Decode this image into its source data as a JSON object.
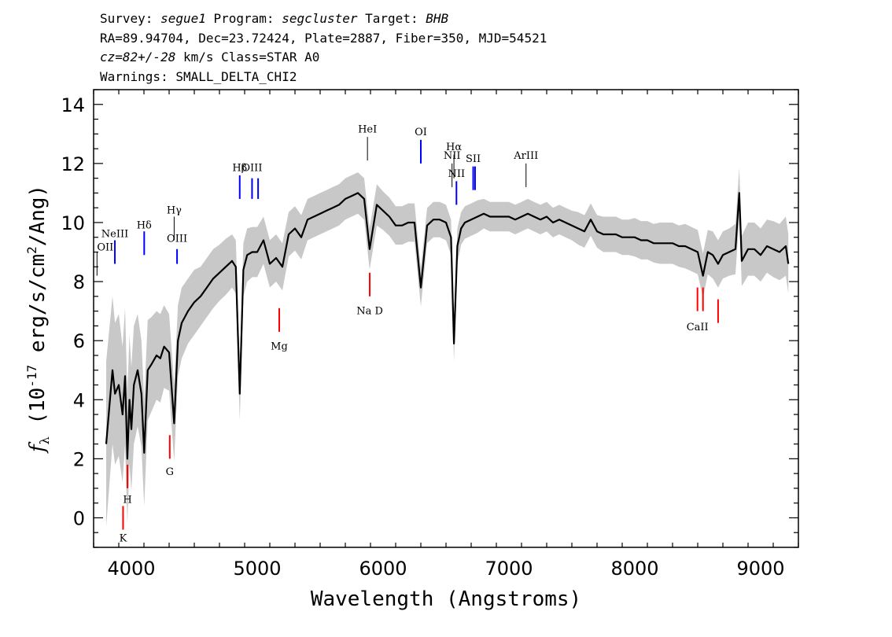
{
  "header": {
    "line1": {
      "survey_label": "Survey: ",
      "survey": "segue1",
      "program_label": " Program: ",
      "program": "segcluster",
      "target_label": " Target: ",
      "target": "BHB"
    },
    "line2": "RA=89.94704, Dec=23.72424, Plate=2887, Fiber=350, MJD=54521",
    "line3": {
      "cz": "cz=82+/-28",
      "rest": " km/s Class=STAR A0"
    },
    "line4": "Warnings: SMALL_DELTA_CHI2"
  },
  "chart_data": {
    "type": "line",
    "xlabel": "Wavelength (Angstroms)",
    "ylabel_prefix": "(10",
    "ylabel_exp": "-17",
    "ylabel_suffix": " erg/s/cm",
    "ylabel_exp2": "2",
    "ylabel_end": "/Ang)",
    "xlim": [
      3700,
      9300
    ],
    "ylim": [
      -1,
      14.5
    ],
    "xticks": [
      "4000",
      "5000",
      "6000",
      "7000",
      "8000",
      "9000"
    ],
    "yticks": [
      "0",
      "2",
      "4",
      "6",
      "8",
      "10",
      "12",
      "14"
    ],
    "colors": {
      "flux": "#000000",
      "error_band": "#c8c8c8",
      "emission": "#0000ff",
      "absorption": "#ff0000",
      "neutral": "#000000"
    },
    "series": [
      {
        "role": "flux",
        "x": [
          3800,
          3850,
          3870,
          3900,
          3930,
          3950,
          3968,
          3985,
          4000,
          4020,
          4050,
          4080,
          4102,
          4130,
          4160,
          4200,
          4230,
          4260,
          4300,
          4340,
          4370,
          4400,
          4450,
          4500,
          4550,
          4600,
          4650,
          4700,
          4750,
          4800,
          4830,
          4861,
          4890,
          4920,
          4960,
          5000,
          5050,
          5100,
          5150,
          5200,
          5250,
          5300,
          5350,
          5400,
          5450,
          5500,
          5550,
          5600,
          5650,
          5700,
          5750,
          5800,
          5850,
          5893,
          5950,
          6000,
          6050,
          6100,
          6150,
          6200,
          6250,
          6300,
          6350,
          6400,
          6450,
          6500,
          6540,
          6563,
          6590,
          6620,
          6650,
          6700,
          6750,
          6800,
          6850,
          6900,
          6950,
          7000,
          7050,
          7100,
          7150,
          7200,
          7250,
          7300,
          7350,
          7400,
          7450,
          7500,
          7550,
          7600,
          7650,
          7700,
          7750,
          7800,
          7850,
          7900,
          7950,
          8000,
          8050,
          8100,
          8150,
          8200,
          8250,
          8300,
          8350,
          8400,
          8450,
          8500,
          8542,
          8580,
          8620,
          8662,
          8700,
          8750,
          8800,
          8830,
          8850,
          8900,
          8950,
          9000,
          9050,
          9100,
          9150,
          9200,
          9220
        ],
        "y": [
          2.5,
          5.0,
          4.2,
          4.5,
          3.5,
          4.8,
          2.0,
          4.0,
          3.0,
          4.5,
          5.0,
          4.2,
          2.2,
          5.0,
          5.2,
          5.5,
          5.4,
          5.8,
          5.6,
          3.2,
          6.0,
          6.6,
          7.0,
          7.3,
          7.5,
          7.8,
          8.1,
          8.3,
          8.5,
          8.7,
          8.5,
          4.2,
          8.4,
          8.9,
          9.0,
          9.0,
          9.4,
          8.6,
          8.8,
          8.5,
          9.6,
          9.8,
          9.5,
          10.1,
          10.2,
          10.3,
          10.4,
          10.5,
          10.6,
          10.8,
          10.9,
          11.0,
          10.8,
          9.1,
          10.6,
          10.4,
          10.2,
          9.9,
          9.9,
          10.0,
          10.0,
          7.8,
          9.9,
          10.1,
          10.1,
          10.0,
          9.5,
          5.9,
          9.2,
          9.8,
          10.0,
          10.1,
          10.2,
          10.3,
          10.2,
          10.2,
          10.2,
          10.2,
          10.1,
          10.2,
          10.3,
          10.2,
          10.1,
          10.2,
          10.0,
          10.1,
          10.0,
          9.9,
          9.8,
          9.7,
          10.1,
          9.7,
          9.6,
          9.6,
          9.6,
          9.5,
          9.5,
          9.5,
          9.4,
          9.4,
          9.3,
          9.3,
          9.3,
          9.3,
          9.2,
          9.2,
          9.1,
          9.0,
          8.2,
          9.0,
          8.9,
          8.6,
          8.9,
          9.0,
          9.1,
          11.0,
          8.7,
          9.1,
          9.1,
          8.9,
          9.2,
          9.1,
          9.0,
          9.2,
          8.6
        ]
      },
      {
        "role": "error_band",
        "half_width": [
          2.8,
          2.5,
          2.4,
          2.4,
          2.3,
          2.3,
          2.2,
          2.2,
          2.1,
          2.0,
          1.9,
          1.8,
          1.8,
          1.7,
          1.6,
          1.5,
          1.5,
          1.4,
          1.3,
          1.3,
          1.2,
          1.2,
          1.1,
          1.1,
          1.0,
          1.0,
          1.0,
          0.95,
          0.95,
          0.9,
          0.9,
          0.9,
          0.9,
          0.9,
          0.85,
          0.85,
          0.8,
          0.8,
          0.8,
          0.8,
          0.75,
          0.75,
          0.75,
          0.7,
          0.7,
          0.7,
          0.7,
          0.7,
          0.7,
          0.7,
          0.7,
          0.7,
          0.7,
          0.7,
          0.7,
          0.65,
          0.65,
          0.65,
          0.65,
          0.65,
          0.65,
          0.65,
          0.6,
          0.6,
          0.6,
          0.6,
          0.6,
          0.6,
          0.6,
          0.55,
          0.55,
          0.55,
          0.55,
          0.5,
          0.5,
          0.5,
          0.5,
          0.5,
          0.5,
          0.5,
          0.5,
          0.5,
          0.5,
          0.5,
          0.5,
          0.5,
          0.5,
          0.5,
          0.55,
          0.55,
          0.55,
          0.55,
          0.6,
          0.6,
          0.6,
          0.6,
          0.6,
          0.65,
          0.65,
          0.65,
          0.65,
          0.7,
          0.7,
          0.7,
          0.7,
          0.75,
          0.75,
          0.75,
          0.75,
          0.75,
          0.8,
          0.8,
          0.8,
          0.8,
          0.85,
          0.85,
          0.85,
          0.9,
          0.9,
          0.9,
          0.9,
          0.95,
          0.95,
          1.0,
          1.0
        ]
      }
    ],
    "lines": [
      {
        "label": "OII",
        "x": 3727,
        "y0": 8.2,
        "y1": 9.0,
        "kind": "neutral",
        "label_y": 9.05
      },
      {
        "label": "NeIII",
        "x": 3869,
        "y0": 8.6,
        "y1": 9.4,
        "kind": "emission",
        "label_y": 9.5
      },
      {
        "label": "Hδ",
        "x": 4102,
        "y0": 8.9,
        "y1": 9.7,
        "kind": "emission",
        "label_y": 9.8
      },
      {
        "label": "Hγ",
        "x": 4340,
        "y0": 9.4,
        "y1": 10.2,
        "kind": "neutral",
        "label_y": 10.3
      },
      {
        "label": "OIII",
        "x": 4363,
        "y0": 8.6,
        "y1": 9.1,
        "kind": "emission",
        "label_y": 9.35
      },
      {
        "label": "Hβ",
        "x": 4861,
        "y0": 10.8,
        "y1": 11.6,
        "kind": "emission",
        "label_y": 11.75
      },
      {
        "label": "OIII",
        "x": 4959,
        "y0": 10.8,
        "y1": 11.5,
        "kind": "emission",
        "label_y": 11.75
      },
      {
        "label": "OIII",
        "x": 5007,
        "y0": 10.8,
        "y1": 11.5,
        "kind": "emission",
        "label_y": null
      },
      {
        "label": "HeI",
        "x": 5876,
        "y0": 12.1,
        "y1": 12.9,
        "kind": "neutral",
        "label_y": 13.05
      },
      {
        "label": "OI",
        "x": 6300,
        "y0": 12.0,
        "y1": 12.8,
        "kind": "emission",
        "label_y": 12.95
      },
      {
        "label": "NII",
        "x": 6548,
        "y0": 11.2,
        "y1": 12.0,
        "kind": "neutral",
        "label_y": 12.15
      },
      {
        "label": "Hα",
        "x": 6563,
        "y0": 11.5,
        "y1": 12.3,
        "kind": "neutral",
        "label_y": 12.45
      },
      {
        "label": "NII",
        "x": 6583,
        "y0": 10.6,
        "y1": 11.4,
        "kind": "emission",
        "label_y": 11.55
      },
      {
        "label": "SII",
        "x": 6716,
        "y0": 11.1,
        "y1": 11.9,
        "kind": "emission",
        "label_y": 12.05
      },
      {
        "label": "SII",
        "x": 6731,
        "y0": 11.1,
        "y1": 11.9,
        "kind": "emission",
        "label_y": null
      },
      {
        "label": "ArIII",
        "x": 7136,
        "y0": 11.2,
        "y1": 12.0,
        "kind": "neutral",
        "label_y": 12.15
      },
      {
        "label": "K",
        "x": 3934,
        "y0": -0.4,
        "y1": 0.4,
        "kind": "absorption",
        "label_y": -0.8
      },
      {
        "label": "H",
        "x": 3969,
        "y0": 1.0,
        "y1": 1.8,
        "kind": "absorption",
        "label_y": 0.5
      },
      {
        "label": "G",
        "x": 4305,
        "y0": 2.0,
        "y1": 2.8,
        "kind": "absorption",
        "label_y": 1.45
      },
      {
        "label": "Mg",
        "x": 5175,
        "y0": 6.3,
        "y1": 7.1,
        "kind": "absorption",
        "label_y": 5.7
      },
      {
        "label": "Na D",
        "x": 5894,
        "y0": 7.5,
        "y1": 8.3,
        "kind": "absorption",
        "label_y": 6.9
      },
      {
        "label": "CaII",
        "x": 8498,
        "y0": 7.0,
        "y1": 7.8,
        "kind": "absorption",
        "label_y": 6.35
      },
      {
        "label": "CaII",
        "x": 8542,
        "y0": 7.0,
        "y1": 7.8,
        "kind": "absorption",
        "label_y": null
      },
      {
        "label": "CaII",
        "x": 8662,
        "y0": 6.6,
        "y1": 7.4,
        "kind": "absorption",
        "label_y": null
      }
    ]
  }
}
